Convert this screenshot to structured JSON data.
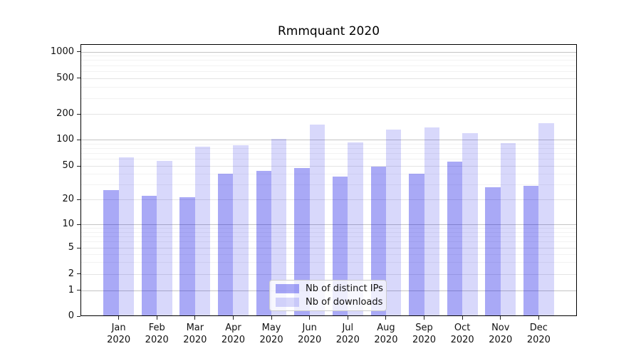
{
  "chart_data": {
    "type": "bar",
    "title": "Rmmquant 2020",
    "categories": [
      "Jan",
      "Feb",
      "Mar",
      "Apr",
      "May",
      "Jun",
      "Jul",
      "Aug",
      "Sep",
      "Oct",
      "Nov",
      "Dec"
    ],
    "x_year_suffix": "2020",
    "series": [
      {
        "name": "Nb of distinct IPs",
        "color": "#0909e5",
        "alpha": 0.35,
        "values": [
          26,
          22,
          21,
          40,
          44,
          47,
          37,
          49,
          40,
          56,
          28,
          29
        ]
      },
      {
        "name": "Nb of downloads",
        "color": "#0909e5",
        "alpha": 0.155,
        "values": [
          63,
          57,
          83,
          86,
          101,
          150,
          93,
          130,
          140,
          119,
          91,
          155
        ]
      }
    ],
    "y_ticks": [
      0,
      1,
      2,
      5,
      10,
      20,
      50,
      100,
      200,
      500,
      1000
    ],
    "y_scale": "symlog",
    "ylim": [
      0,
      1200
    ],
    "grid": true,
    "legend_position": "lower center",
    "colors": {
      "bar_dark": "#a9a9f6",
      "bar_light": "#d9d9f8",
      "grid_major": "#c4c4c4",
      "grid_minor": "#f2f2f2"
    }
  }
}
